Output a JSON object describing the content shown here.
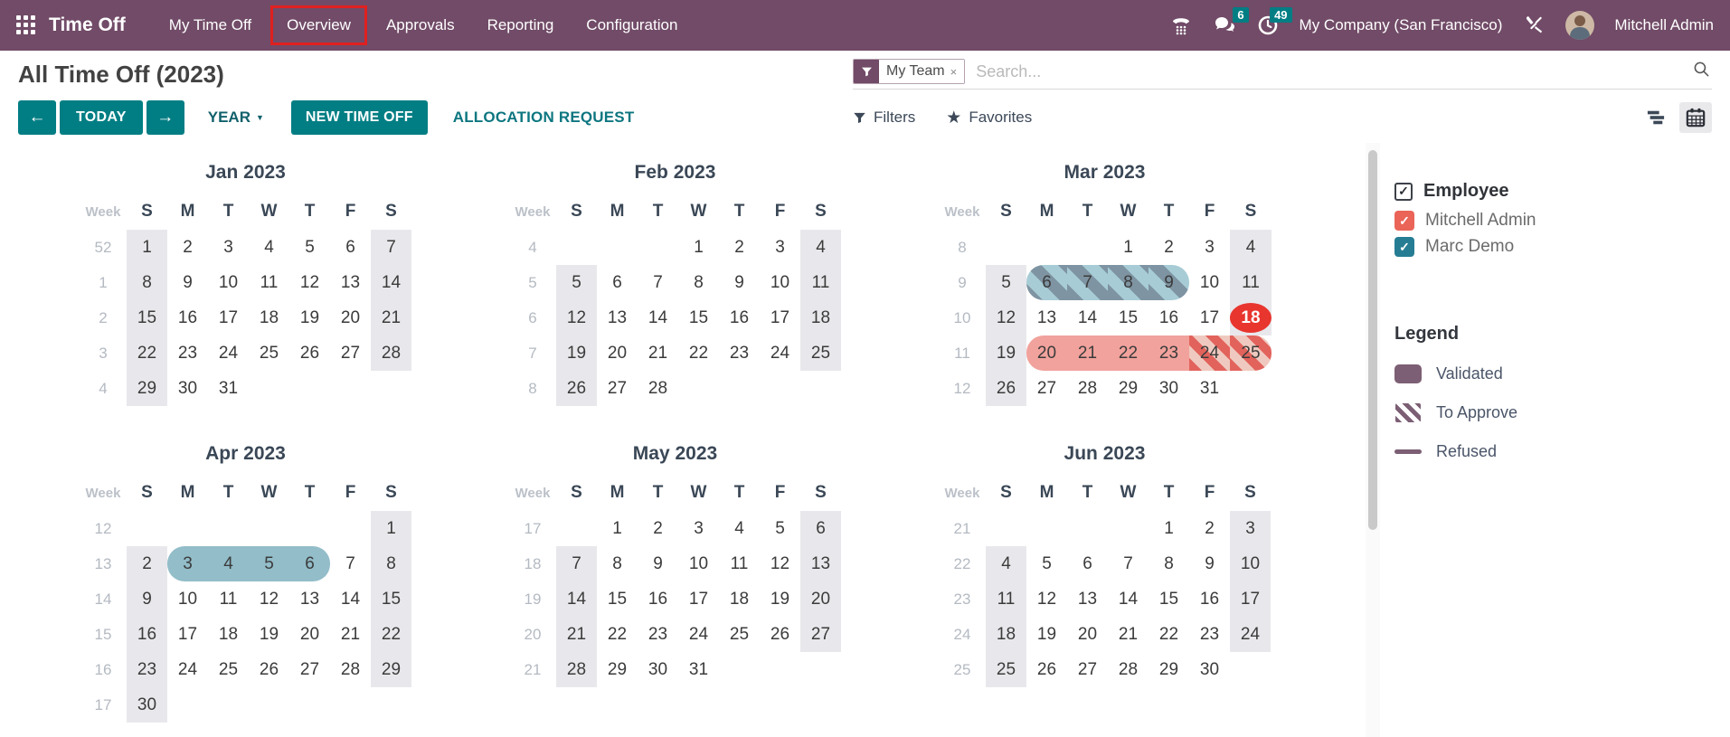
{
  "colors": {
    "topbar": "#714B67",
    "teal": "#017E84",
    "red": "#E8352E",
    "salmon": "#F1A29C",
    "blue": "#92BDC9",
    "weekend": "#E8E8EC",
    "legend": "#7C5F74",
    "employee_red": "#EA6458",
    "employee_blue": "#267D93"
  },
  "topbar": {
    "app_name": "Time Off",
    "menu": [
      "My Time Off",
      "Overview",
      "Approvals",
      "Reporting",
      "Configuration"
    ],
    "active_menu": "Overview",
    "messages_badge": "6",
    "activities_badge": "49",
    "company": "My Company (San Francisco)",
    "user": "Mitchell Admin"
  },
  "header": {
    "title": "All Time Off (2023)",
    "search": {
      "facet": "My Team",
      "facet_remove": "×",
      "placeholder": "Search..."
    }
  },
  "controls": {
    "prev": "←",
    "today": "TODAY",
    "next": "→",
    "range": "YEAR",
    "caret": "▼",
    "new_time_off": "NEW TIME OFF",
    "allocation_request": "ALLOCATION REQUEST",
    "filters": "Filters",
    "favorites": "Favorites",
    "favorites_star": "★"
  },
  "sidebar": {
    "employee_label": "Employee",
    "check_glyph": "✓",
    "employees": [
      {
        "name": "Mitchell Admin",
        "color": "#EA6458"
      },
      {
        "name": "Marc Demo",
        "color": "#267D93"
      }
    ],
    "legend_title": "Legend",
    "legend_items": [
      {
        "label": "Validated",
        "swatch": "solid"
      },
      {
        "label": "To Approve",
        "swatch": "stripes"
      },
      {
        "label": "Refused",
        "swatch": "line"
      }
    ]
  },
  "calendar": {
    "year": "2023",
    "week_label": "Week",
    "day_headers": [
      "S",
      "M",
      "T",
      "W",
      "T",
      "F",
      "S"
    ],
    "months": [
      {
        "name": "Jan 2023",
        "weeks": [
          {
            "num": 52,
            "days": [
              1,
              2,
              3,
              4,
              5,
              6,
              7
            ]
          },
          {
            "num": 1,
            "days": [
              8,
              9,
              10,
              11,
              12,
              13,
              14
            ]
          },
          {
            "num": 2,
            "days": [
              15,
              16,
              17,
              18,
              19,
              20,
              21
            ]
          },
          {
            "num": 3,
            "days": [
              22,
              23,
              24,
              25,
              26,
              27,
              28
            ]
          },
          {
            "num": 4,
            "days": [
              29,
              30,
              31,
              null,
              null,
              null,
              null
            ]
          }
        ],
        "marks": []
      },
      {
        "name": "Feb 2023",
        "weeks": [
          {
            "num": 4,
            "days": [
              null,
              null,
              null,
              1,
              2,
              3,
              4
            ]
          },
          {
            "num": 5,
            "days": [
              5,
              6,
              7,
              8,
              9,
              10,
              11
            ]
          },
          {
            "num": 6,
            "days": [
              12,
              13,
              14,
              15,
              16,
              17,
              18
            ]
          },
          {
            "num": 7,
            "days": [
              19,
              20,
              21,
              22,
              23,
              24,
              25
            ]
          },
          {
            "num": 8,
            "days": [
              26,
              27,
              28,
              null,
              null,
              null,
              null
            ]
          }
        ],
        "marks": []
      },
      {
        "name": "Mar 2023",
        "weeks": [
          {
            "num": 8,
            "days": [
              null,
              null,
              null,
              1,
              2,
              3,
              4
            ]
          },
          {
            "num": 9,
            "days": [
              5,
              6,
              7,
              8,
              9,
              10,
              11
            ]
          },
          {
            "num": 10,
            "days": [
              12,
              13,
              14,
              15,
              16,
              17,
              18
            ]
          },
          {
            "num": 11,
            "days": [
              19,
              20,
              21,
              22,
              23,
              24,
              25
            ]
          },
          {
            "num": 12,
            "days": [
              26,
              27,
              28,
              29,
              30,
              31,
              null
            ]
          }
        ],
        "marks": [
          {
            "type": "pill",
            "row": 1,
            "from": 1,
            "to": 4,
            "variant": "toapprove-blue",
            "round": "both"
          },
          {
            "type": "badge",
            "row": 2,
            "col": 6,
            "variant": "refused-badge"
          },
          {
            "type": "pill",
            "row": 3,
            "from": 1,
            "to": 4,
            "variant": "validated-red",
            "round": "left"
          },
          {
            "type": "pill",
            "row": 3,
            "from": 5,
            "to": 6,
            "variant": "toapprove-red",
            "round": "right"
          }
        ]
      },
      {
        "name": "Apr 2023",
        "weeks": [
          {
            "num": 12,
            "days": [
              null,
              null,
              null,
              null,
              null,
              null,
              1
            ]
          },
          {
            "num": 13,
            "days": [
              2,
              3,
              4,
              5,
              6,
              7,
              8
            ]
          },
          {
            "num": 14,
            "days": [
              9,
              10,
              11,
              12,
              13,
              14,
              15
            ]
          },
          {
            "num": 15,
            "days": [
              16,
              17,
              18,
              19,
              20,
              21,
              22
            ]
          },
          {
            "num": 16,
            "days": [
              23,
              24,
              25,
              26,
              27,
              28,
              29
            ]
          },
          {
            "num": 17,
            "days": [
              30,
              null,
              null,
              null,
              null,
              null,
              null
            ]
          }
        ],
        "marks": [
          {
            "type": "pill",
            "row": 1,
            "from": 1,
            "to": 4,
            "variant": "validated-blue",
            "round": "both"
          }
        ]
      },
      {
        "name": "May 2023",
        "weeks": [
          {
            "num": 17,
            "days": [
              null,
              1,
              2,
              3,
              4,
              5,
              6
            ]
          },
          {
            "num": 18,
            "days": [
              7,
              8,
              9,
              10,
              11,
              12,
              13
            ]
          },
          {
            "num": 19,
            "days": [
              14,
              15,
              16,
              17,
              18,
              19,
              20
            ]
          },
          {
            "num": 20,
            "days": [
              21,
              22,
              23,
              24,
              25,
              26,
              27
            ]
          },
          {
            "num": 21,
            "days": [
              28,
              29,
              30,
              31,
              null,
              null,
              null
            ]
          }
        ],
        "marks": []
      },
      {
        "name": "Jun 2023",
        "weeks": [
          {
            "num": 21,
            "days": [
              null,
              null,
              null,
              null,
              1,
              2,
              3
            ]
          },
          {
            "num": 22,
            "days": [
              4,
              5,
              6,
              7,
              8,
              9,
              10
            ]
          },
          {
            "num": 23,
            "days": [
              11,
              12,
              13,
              14,
              15,
              16,
              17
            ]
          },
          {
            "num": 24,
            "days": [
              18,
              19,
              20,
              21,
              22,
              23,
              24
            ]
          },
          {
            "num": 25,
            "days": [
              25,
              26,
              27,
              28,
              29,
              30,
              null
            ]
          }
        ],
        "marks": []
      }
    ]
  }
}
